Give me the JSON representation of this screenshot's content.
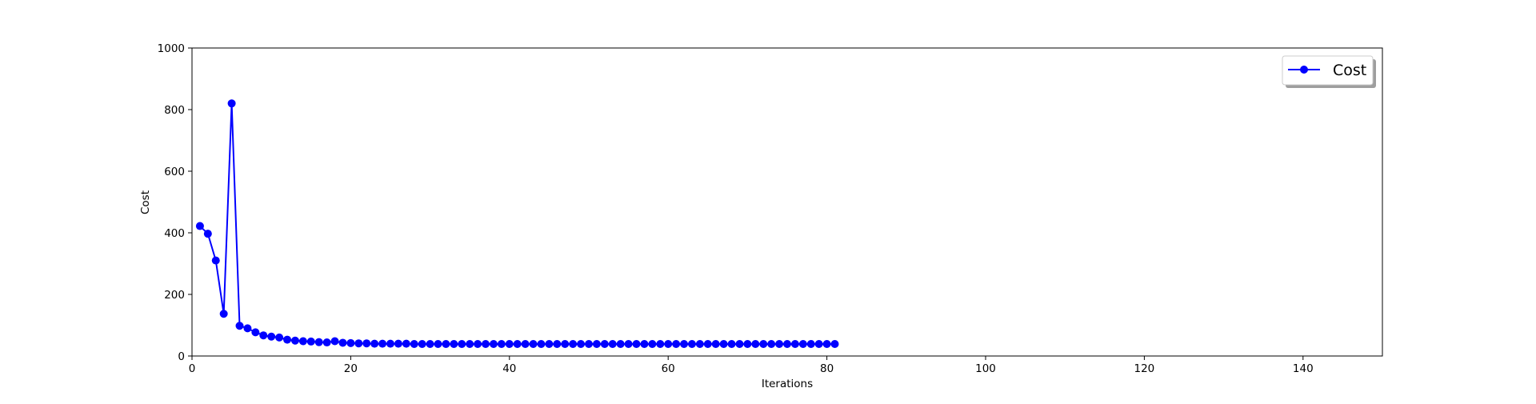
{
  "chart_data": {
    "type": "line",
    "title": "",
    "xlabel": "Iterations",
    "ylabel": "Cost",
    "xlim": [
      0,
      150
    ],
    "ylim": [
      0,
      1000
    ],
    "xticks": [
      0,
      20,
      40,
      60,
      80,
      100,
      120,
      140
    ],
    "yticks": [
      0,
      200,
      400,
      600,
      800,
      1000
    ],
    "grid": false,
    "legend_position": "top-right",
    "series": [
      {
        "name": "Cost",
        "color": "#0000ff",
        "marker": "circle",
        "x": [
          1,
          2,
          3,
          4,
          5,
          6,
          7,
          8,
          9,
          10,
          11,
          12,
          13,
          14,
          15,
          16,
          17,
          18,
          19,
          20,
          21,
          22,
          23,
          24,
          25,
          26,
          27,
          28,
          29,
          30,
          31,
          32,
          33,
          34,
          35,
          36,
          37,
          38,
          39,
          40,
          41,
          42,
          43,
          44,
          45,
          46,
          47,
          48,
          49,
          50,
          51,
          52,
          53,
          54,
          55,
          56,
          57,
          58,
          59,
          60,
          61,
          62,
          63,
          64,
          65,
          66,
          67,
          68,
          69,
          70,
          71,
          72,
          73,
          74,
          75,
          76,
          77,
          78,
          79,
          80,
          81
        ],
        "y": [
          422,
          397,
          310,
          137,
          820,
          98,
          90,
          77,
          67,
          63,
          60,
          53,
          50,
          48,
          47,
          45,
          44,
          48,
          43,
          42,
          41,
          41,
          40,
          40,
          40,
          40,
          40,
          39,
          39,
          39,
          39,
          39,
          39,
          39,
          39,
          39,
          39,
          39,
          39,
          39,
          39,
          39,
          39,
          39,
          39,
          39,
          39,
          39,
          39,
          39,
          39,
          39,
          39,
          39,
          39,
          39,
          39,
          39,
          39,
          39,
          39,
          39,
          39,
          39,
          39,
          39,
          39,
          39,
          39,
          39,
          39,
          39,
          39,
          39,
          39,
          39,
          39,
          39,
          39,
          39,
          39
        ]
      }
    ]
  }
}
